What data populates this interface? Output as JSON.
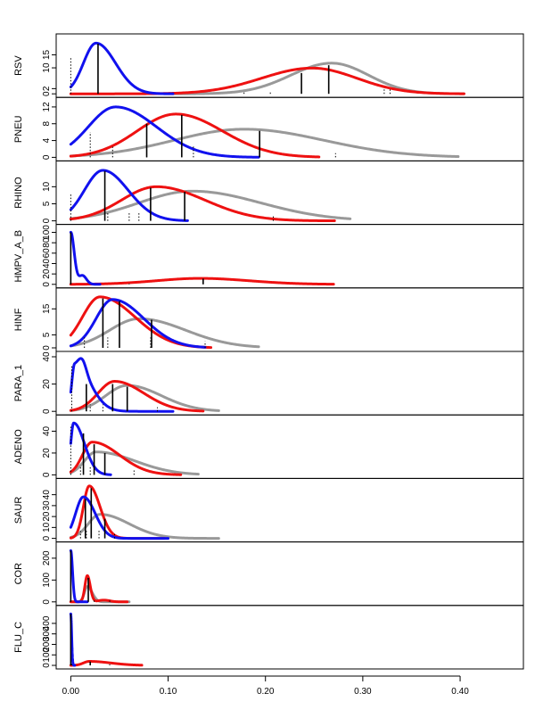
{
  "chart_data": {
    "type": "line",
    "x_ticks": [
      "0.00",
      "0.10",
      "0.20",
      "0.30",
      "0.40"
    ],
    "x_tick_values": [
      0,
      0.1,
      0.2,
      0.3,
      0.4
    ],
    "xlim": [
      -0.015,
      0.465
    ],
    "colors": {
      "gray": "#999999",
      "red": "#ee1111",
      "blue": "#1111ee"
    },
    "panels": [
      {
        "label": "RSV",
        "ylim": [
          0,
          21
        ],
        "y_ticks": [
          {
            "v": 0,
            "t": "0"
          },
          {
            "v": 2,
            "t": "2"
          },
          {
            "v": 10,
            "t": "10"
          },
          {
            "v": 15,
            "t": "15"
          }
        ],
        "series": [
          {
            "color": "gray",
            "peak_x": 0.268,
            "peak_y": 11.8,
            "sd_left": 0.042,
            "sd_right": 0.038,
            "x_min": 0.105,
            "x_max": 0.404
          },
          {
            "color": "red",
            "peak_x": 0.248,
            "peak_y": 9.9,
            "sd_left": 0.052,
            "sd_right": 0.046,
            "x_min": 0.0,
            "x_max": 0.404
          },
          {
            "color": "blue",
            "peak_x": 0.026,
            "peak_y": 19.5,
            "sd_left": 0.013,
            "sd_right": 0.02,
            "x_min": 0.0,
            "x_max": 0.105
          }
        ],
        "solid_lines": [
          {
            "x": 0.028,
            "y": 19.3
          },
          {
            "x": 0.237,
            "y": 8.0
          },
          {
            "x": 0.265,
            "y": 11.0
          }
        ],
        "dotted_lines": [
          {
            "x": 0.0,
            "y": 14.0
          },
          {
            "x": 0.178,
            "y": 1.0
          },
          {
            "x": 0.205,
            "y": 1.2
          },
          {
            "x": 0.322,
            "y": 1.8
          },
          {
            "x": 0.328,
            "y": 1.6
          }
        ]
      },
      {
        "label": "PNEU",
        "ylim": [
          0,
          13
        ],
        "y_ticks": [
          {
            "v": 0,
            "t": "0"
          },
          {
            "v": 4,
            "t": "4"
          },
          {
            "v": 8,
            "t": "8"
          },
          {
            "v": 12,
            "t": "12"
          }
        ],
        "series": [
          {
            "color": "gray",
            "peak_x": 0.178,
            "peak_y": 6.7,
            "sd_left": 0.072,
            "sd_right": 0.082,
            "x_min": 0.0,
            "x_max": 0.398
          },
          {
            "color": "red",
            "peak_x": 0.108,
            "peak_y": 10.3,
            "sd_left": 0.04,
            "sd_right": 0.048,
            "x_min": 0.0,
            "x_max": 0.255
          },
          {
            "color": "blue",
            "peak_x": 0.046,
            "peak_y": 12.0,
            "sd_left": 0.028,
            "sd_right": 0.042,
            "x_min": 0.0,
            "x_max": 0.193
          }
        ],
        "solid_lines": [
          {
            "x": 0.078,
            "y": 8.0
          },
          {
            "x": 0.114,
            "y": 10.1
          },
          {
            "x": 0.194,
            "y": 6.3
          }
        ],
        "dotted_lines": [
          {
            "x": 0.02,
            "y": 6.0
          },
          {
            "x": 0.043,
            "y": 2.5
          },
          {
            "x": 0.078,
            "y": 1.5
          },
          {
            "x": 0.126,
            "y": 2.6
          },
          {
            "x": 0.272,
            "y": 1.0
          }
        ]
      },
      {
        "label": "RHINO",
        "ylim": [
          0,
          16
        ],
        "y_ticks": [
          {
            "v": 0,
            "t": "0"
          },
          {
            "v": 5,
            "t": "5"
          },
          {
            "v": 10,
            "t": "10"
          }
        ],
        "series": [
          {
            "color": "gray",
            "peak_x": 0.125,
            "peak_y": 8.7,
            "sd_left": 0.055,
            "sd_right": 0.07,
            "x_min": 0.0,
            "x_max": 0.287
          },
          {
            "color": "red",
            "peak_x": 0.088,
            "peak_y": 10.0,
            "sd_left": 0.036,
            "sd_right": 0.05,
            "x_min": 0.0,
            "x_max": 0.271
          },
          {
            "color": "blue",
            "peak_x": 0.033,
            "peak_y": 14.8,
            "sd_left": 0.019,
            "sd_right": 0.026,
            "x_min": 0.0,
            "x_max": 0.12
          }
        ],
        "solid_lines": [
          {
            "x": 0.035,
            "y": 14.6
          },
          {
            "x": 0.082,
            "y": 9.7
          },
          {
            "x": 0.117,
            "y": 8.5
          }
        ],
        "dotted_lines": [
          {
            "x": 0.0,
            "y": 7.7
          },
          {
            "x": 0.038,
            "y": 2.5
          },
          {
            "x": 0.06,
            "y": 2.5
          },
          {
            "x": 0.07,
            "y": 2.5
          },
          {
            "x": 0.208,
            "y": 1.4
          }
        ]
      },
      {
        "label": "HMPV_A_B",
        "ylim": [
          0,
          105
        ],
        "y_ticks": [
          {
            "v": 0,
            "t": "0"
          },
          {
            "v": 20,
            "t": "20"
          },
          {
            "v": 40,
            "t": "40"
          },
          {
            "v": 60,
            "t": "60"
          },
          {
            "v": 80,
            "t": "80"
          },
          {
            "v": 100,
            "t": "100"
          }
        ],
        "series": [
          {
            "color": "red",
            "peak_x": 0.133,
            "peak_y": 11.5,
            "sd_left": 0.045,
            "sd_right": 0.05,
            "x_min": 0.0,
            "x_max": 0.27
          },
          {
            "color": "blue",
            "peak_x": 0.0,
            "peak_y": 100,
            "sd_left": 0.002,
            "sd_right": 0.0035,
            "x_min": 0.0,
            "x_max": 0.03,
            "bumps": [
              {
                "mu": 0.012,
                "sd": 0.004,
                "h": 17
              }
            ]
          }
        ],
        "solid_lines": [
          {
            "x": 0.0,
            "y": 100
          },
          {
            "x": 0.136,
            "y": 11.0
          }
        ],
        "dotted_lines": [
          {
            "x": 0.0,
            "y": 4.0
          },
          {
            "x": 0.06,
            "y": 1.5
          }
        ]
      },
      {
        "label": "HINF",
        "ylim": [
          0,
          21
        ],
        "y_ticks": [
          {
            "v": 0,
            "t": "0"
          },
          {
            "v": 5,
            "t": "5"
          },
          {
            "v": 15,
            "t": "15"
          }
        ],
        "series": [
          {
            "color": "gray",
            "peak_x": 0.07,
            "peak_y": 11.2,
            "sd_left": 0.03,
            "sd_right": 0.048,
            "x_min": 0.0,
            "x_max": 0.193
          },
          {
            "color": "red",
            "peak_x": 0.03,
            "peak_y": 19.6,
            "sd_left": 0.018,
            "sd_right": 0.036,
            "x_min": 0.0,
            "x_max": 0.144
          },
          {
            "color": "blue",
            "peak_x": 0.043,
            "peak_y": 18.6,
            "sd_left": 0.017,
            "sd_right": 0.032,
            "x_min": 0.0,
            "x_max": 0.138
          }
        ],
        "solid_lines": [
          {
            "x": 0.033,
            "y": 19.0
          },
          {
            "x": 0.05,
            "y": 18.0
          },
          {
            "x": 0.083,
            "y": 10.8
          }
        ],
        "dotted_lines": [
          {
            "x": 0.014,
            "y": 4.0
          },
          {
            "x": 0.038,
            "y": 4.0
          },
          {
            "x": 0.082,
            "y": 4.0
          },
          {
            "x": 0.138,
            "y": 2.5
          }
        ]
      },
      {
        "label": "PARA_1",
        "ylim": [
          0,
          40
        ],
        "y_ticks": [
          {
            "v": 0,
            "t": "0"
          },
          {
            "v": 20,
            "t": "20"
          },
          {
            "v": 40,
            "t": "40"
          }
        ],
        "series": [
          {
            "color": "gray",
            "peak_x": 0.058,
            "peak_y": 19.0,
            "sd_left": 0.022,
            "sd_right": 0.035,
            "x_min": 0.0,
            "x_max": 0.152
          },
          {
            "color": "red",
            "peak_x": 0.045,
            "peak_y": 22.0,
            "sd_left": 0.017,
            "sd_right": 0.03,
            "x_min": 0.0,
            "x_max": 0.136
          },
          {
            "color": "blue",
            "peak_x": 0.004,
            "peak_y": 34,
            "sd_left": 0.003,
            "sd_right": 0.016,
            "x_min": 0.0,
            "x_max": 0.105,
            "bumps": [
              {
                "mu": 0.012,
                "sd": 0.004,
                "h": 8
              }
            ]
          }
        ],
        "solid_lines": [
          {
            "x": 0.016,
            "y": 20.0
          },
          {
            "x": 0.043,
            "y": 20.0
          },
          {
            "x": 0.058,
            "y": 18.0
          }
        ],
        "dotted_lines": [
          {
            "x": 0.001,
            "y": 34.0
          },
          {
            "x": 0.02,
            "y": 5.0
          },
          {
            "x": 0.033,
            "y": 5.0
          },
          {
            "x": 0.089,
            "y": 3.0
          }
        ]
      },
      {
        "label": "ADENO",
        "ylim": [
          0,
          50
        ],
        "y_ticks": [
          {
            "v": 0,
            "t": "0"
          },
          {
            "v": 20,
            "t": "20"
          },
          {
            "v": 40,
            "t": "40"
          }
        ],
        "series": [
          {
            "color": "gray",
            "peak_x": 0.026,
            "peak_y": 21.0,
            "sd_left": 0.012,
            "sd_right": 0.04,
            "x_min": 0.0,
            "x_max": 0.131
          },
          {
            "color": "red",
            "peak_x": 0.022,
            "peak_y": 30.0,
            "sd_left": 0.01,
            "sd_right": 0.028,
            "x_min": 0.0,
            "x_max": 0.113
          },
          {
            "color": "blue",
            "peak_x": 0.003,
            "peak_y": 47.5,
            "sd_left": 0.003,
            "sd_right": 0.011,
            "x_min": 0.0,
            "x_max": 0.041
          }
        ],
        "solid_lines": [
          {
            "x": 0.013,
            "y": 38.0
          },
          {
            "x": 0.024,
            "y": 28.0
          },
          {
            "x": 0.035,
            "y": 20.0
          }
        ],
        "dotted_lines": [
          {
            "x": 0.0,
            "y": 46.0
          },
          {
            "x": 0.01,
            "y": 8.0
          },
          {
            "x": 0.02,
            "y": 8.0
          },
          {
            "x": 0.065,
            "y": 4.0
          }
        ]
      },
      {
        "label": "SAUR",
        "ylim": [
          0,
          50
        ],
        "y_ticks": [
          {
            "v": 0,
            "t": "0"
          },
          {
            "v": 10,
            "t": "10"
          },
          {
            "v": 20,
            "t": "20"
          },
          {
            "v": 30,
            "t": "30"
          },
          {
            "v": 40,
            "t": "40"
          }
        ],
        "series": [
          {
            "color": "gray",
            "peak_x": 0.03,
            "peak_y": 22.0,
            "sd_left": 0.012,
            "sd_right": 0.03,
            "x_min": 0.0,
            "x_max": 0.152
          },
          {
            "color": "red",
            "peak_x": 0.019,
            "peak_y": 48.0,
            "sd_left": 0.006,
            "sd_right": 0.011,
            "x_min": 0.0,
            "x_max": 0.096
          },
          {
            "color": "blue",
            "peak_x": 0.013,
            "peak_y": 38.0,
            "sd_left": 0.008,
            "sd_right": 0.012,
            "x_min": 0.0,
            "x_max": 0.1
          }
        ],
        "solid_lines": [
          {
            "x": 0.015,
            "y": 36.0
          },
          {
            "x": 0.021,
            "y": 46.0
          },
          {
            "x": 0.035,
            "y": 18.0
          }
        ],
        "dotted_lines": [
          {
            "x": 0.01,
            "y": 8.0
          },
          {
            "x": 0.016,
            "y": 8.0
          },
          {
            "x": 0.029,
            "y": 8.0
          },
          {
            "x": 0.045,
            "y": 4.0
          }
        ]
      },
      {
        "label": "COR",
        "ylim": [
          0,
          250
        ],
        "y_ticks": [
          {
            "v": 0,
            "t": "0"
          },
          {
            "v": 100,
            "t": "100"
          },
          {
            "v": 200,
            "t": "200"
          }
        ],
        "series": [
          {
            "color": "gray",
            "peak_x": 0.017,
            "peak_y": 70,
            "sd_left": 0.003,
            "sd_right": 0.005,
            "x_min": 0.0,
            "x_max": 0.06
          },
          {
            "color": "red",
            "peak_x": 0.017,
            "peak_y": 120,
            "sd_left": 0.0025,
            "sd_right": 0.003,
            "x_min": 0.0,
            "x_max": 0.058,
            "bumps": [
              {
                "mu": 0.034,
                "sd": 0.006,
                "h": 8
              }
            ]
          },
          {
            "color": "blue",
            "peak_x": 0.0,
            "peak_y": 235,
            "sd_left": 0.0015,
            "sd_right": 0.0018,
            "x_min": 0.0,
            "x_max": 0.017
          }
        ],
        "solid_lines": [
          {
            "x": 0.0,
            "y": 235
          },
          {
            "x": 0.018,
            "y": 110
          }
        ],
        "dotted_lines": [
          {
            "x": 0.024,
            "y": 15
          },
          {
            "x": 0.04,
            "y": 15
          }
        ]
      },
      {
        "label": "FLU_C",
        "ylim": [
          0,
          520
        ],
        "y_ticks": [
          {
            "v": 0,
            "t": "0"
          },
          {
            "v": 100,
            "t": "100"
          },
          {
            "v": 200,
            "t": "200"
          },
          {
            "v": 300,
            "t": "300"
          },
          {
            "v": 400,
            "t": "400"
          }
        ],
        "series": [
          {
            "color": "red",
            "peak_x": 0.019,
            "peak_y": 38,
            "sd_left": 0.006,
            "sd_right": 0.022,
            "x_min": 0.0,
            "x_max": 0.073
          },
          {
            "color": "blue",
            "peak_x": 0.0,
            "peak_y": 490,
            "sd_left": 0.0008,
            "sd_right": 0.0009,
            "x_min": 0.0,
            "x_max": 0.004
          }
        ],
        "solid_lines": [
          {
            "x": 0.0,
            "y": 490
          },
          {
            "x": 0.02,
            "y": 36
          }
        ],
        "dotted_lines": [
          {
            "x": 0.001,
            "y": 20
          },
          {
            "x": 0.04,
            "y": 10
          }
        ]
      }
    ]
  }
}
